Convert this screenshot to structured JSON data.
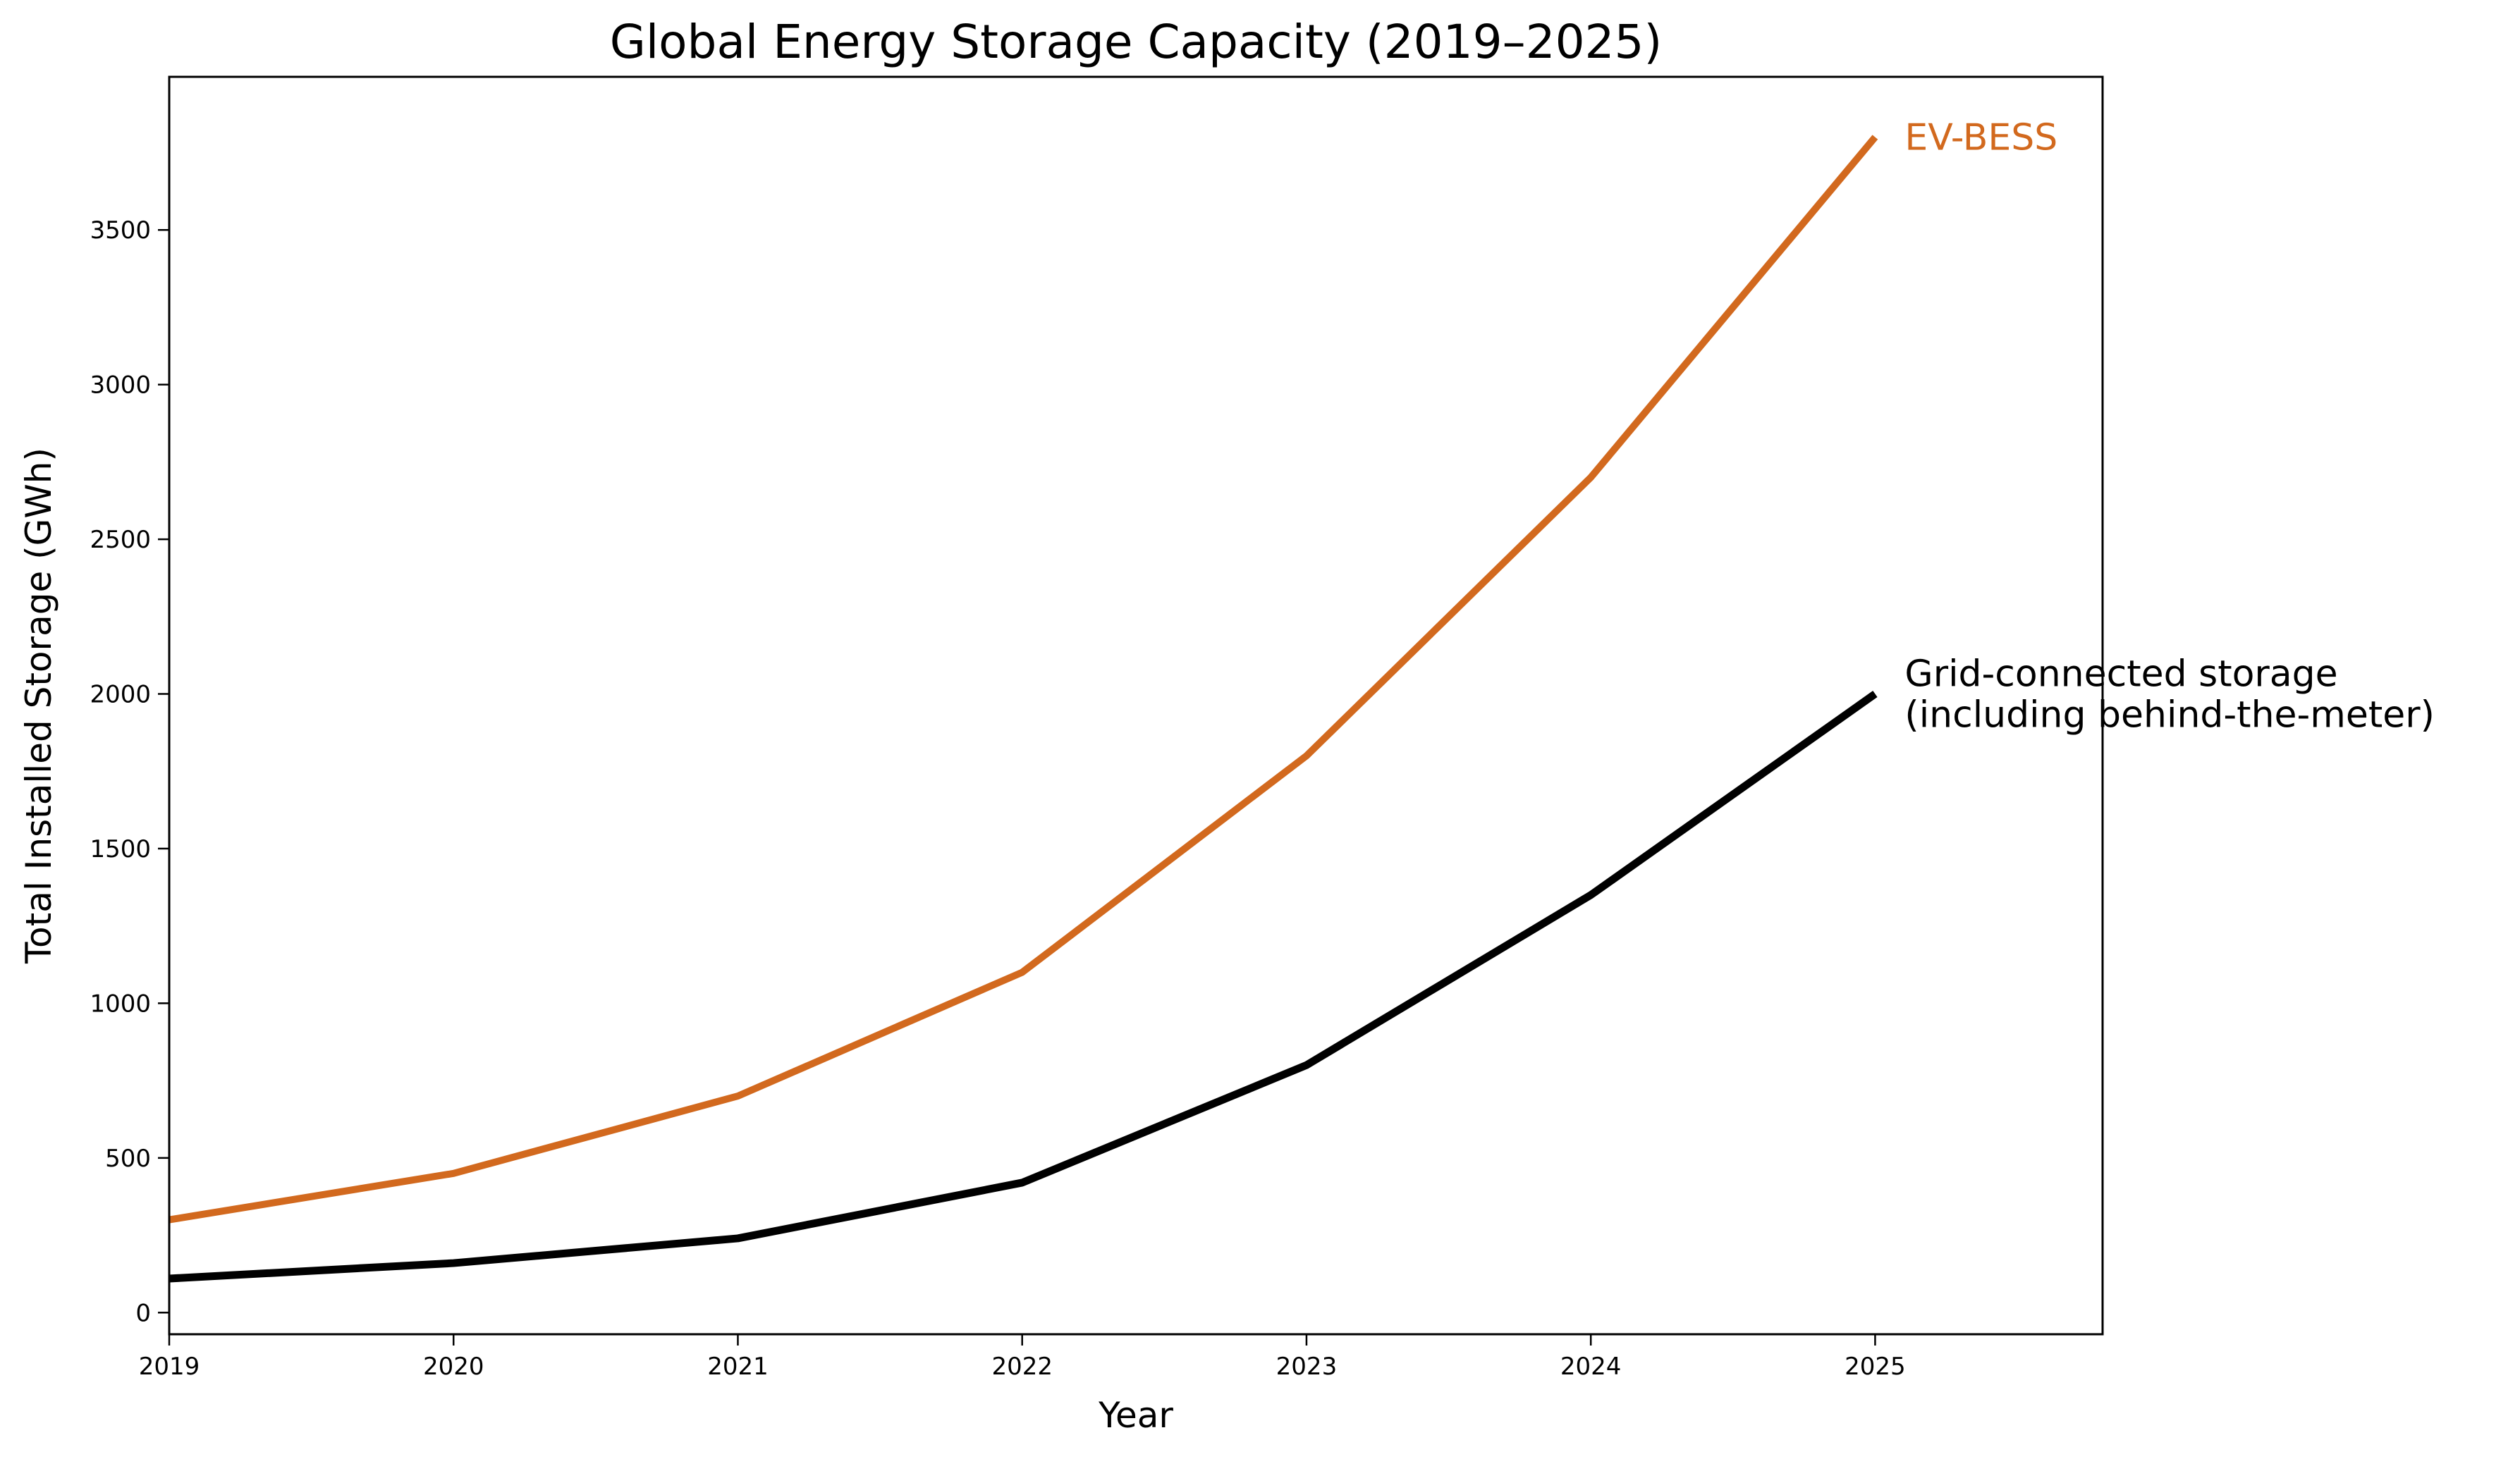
{
  "chart_data": {
    "type": "line",
    "title": "Global Energy Storage Capacity (2019–2025)",
    "xlabel": "Year",
    "ylabel": "Total Installed Storage (GWh)",
    "x": [
      2019,
      2020,
      2021,
      2022,
      2023,
      2024,
      2025
    ],
    "xlim": [
      2019,
      2025.8
    ],
    "ylim": [
      -70,
      3995
    ],
    "xticks": [
      "2019",
      "2020",
      "2021",
      "2022",
      "2023",
      "2024",
      "2025"
    ],
    "yticks": [
      "0",
      "500",
      "1000",
      "1500",
      "2000",
      "2500",
      "3000",
      "3500"
    ],
    "ytick_values": [
      0,
      500,
      1000,
      1500,
      2000,
      2500,
      3000,
      3500
    ],
    "grid": false,
    "legend": "none (direct labels at line ends)",
    "series": [
      {
        "name": "EV-BESS",
        "label_lines": [
          "EV-BESS"
        ],
        "color": "#d2691e",
        "values": [
          300,
          450,
          700,
          1100,
          1800,
          2700,
          3800
        ]
      },
      {
        "name": "Grid-connected storage (including behind-the-meter)",
        "label_lines": [
          "Grid-connected storage",
          "(including behind-the-meter)"
        ],
        "color": "#000000",
        "values": [
          110,
          160,
          240,
          420,
          800,
          1350,
          2000
        ]
      }
    ]
  }
}
